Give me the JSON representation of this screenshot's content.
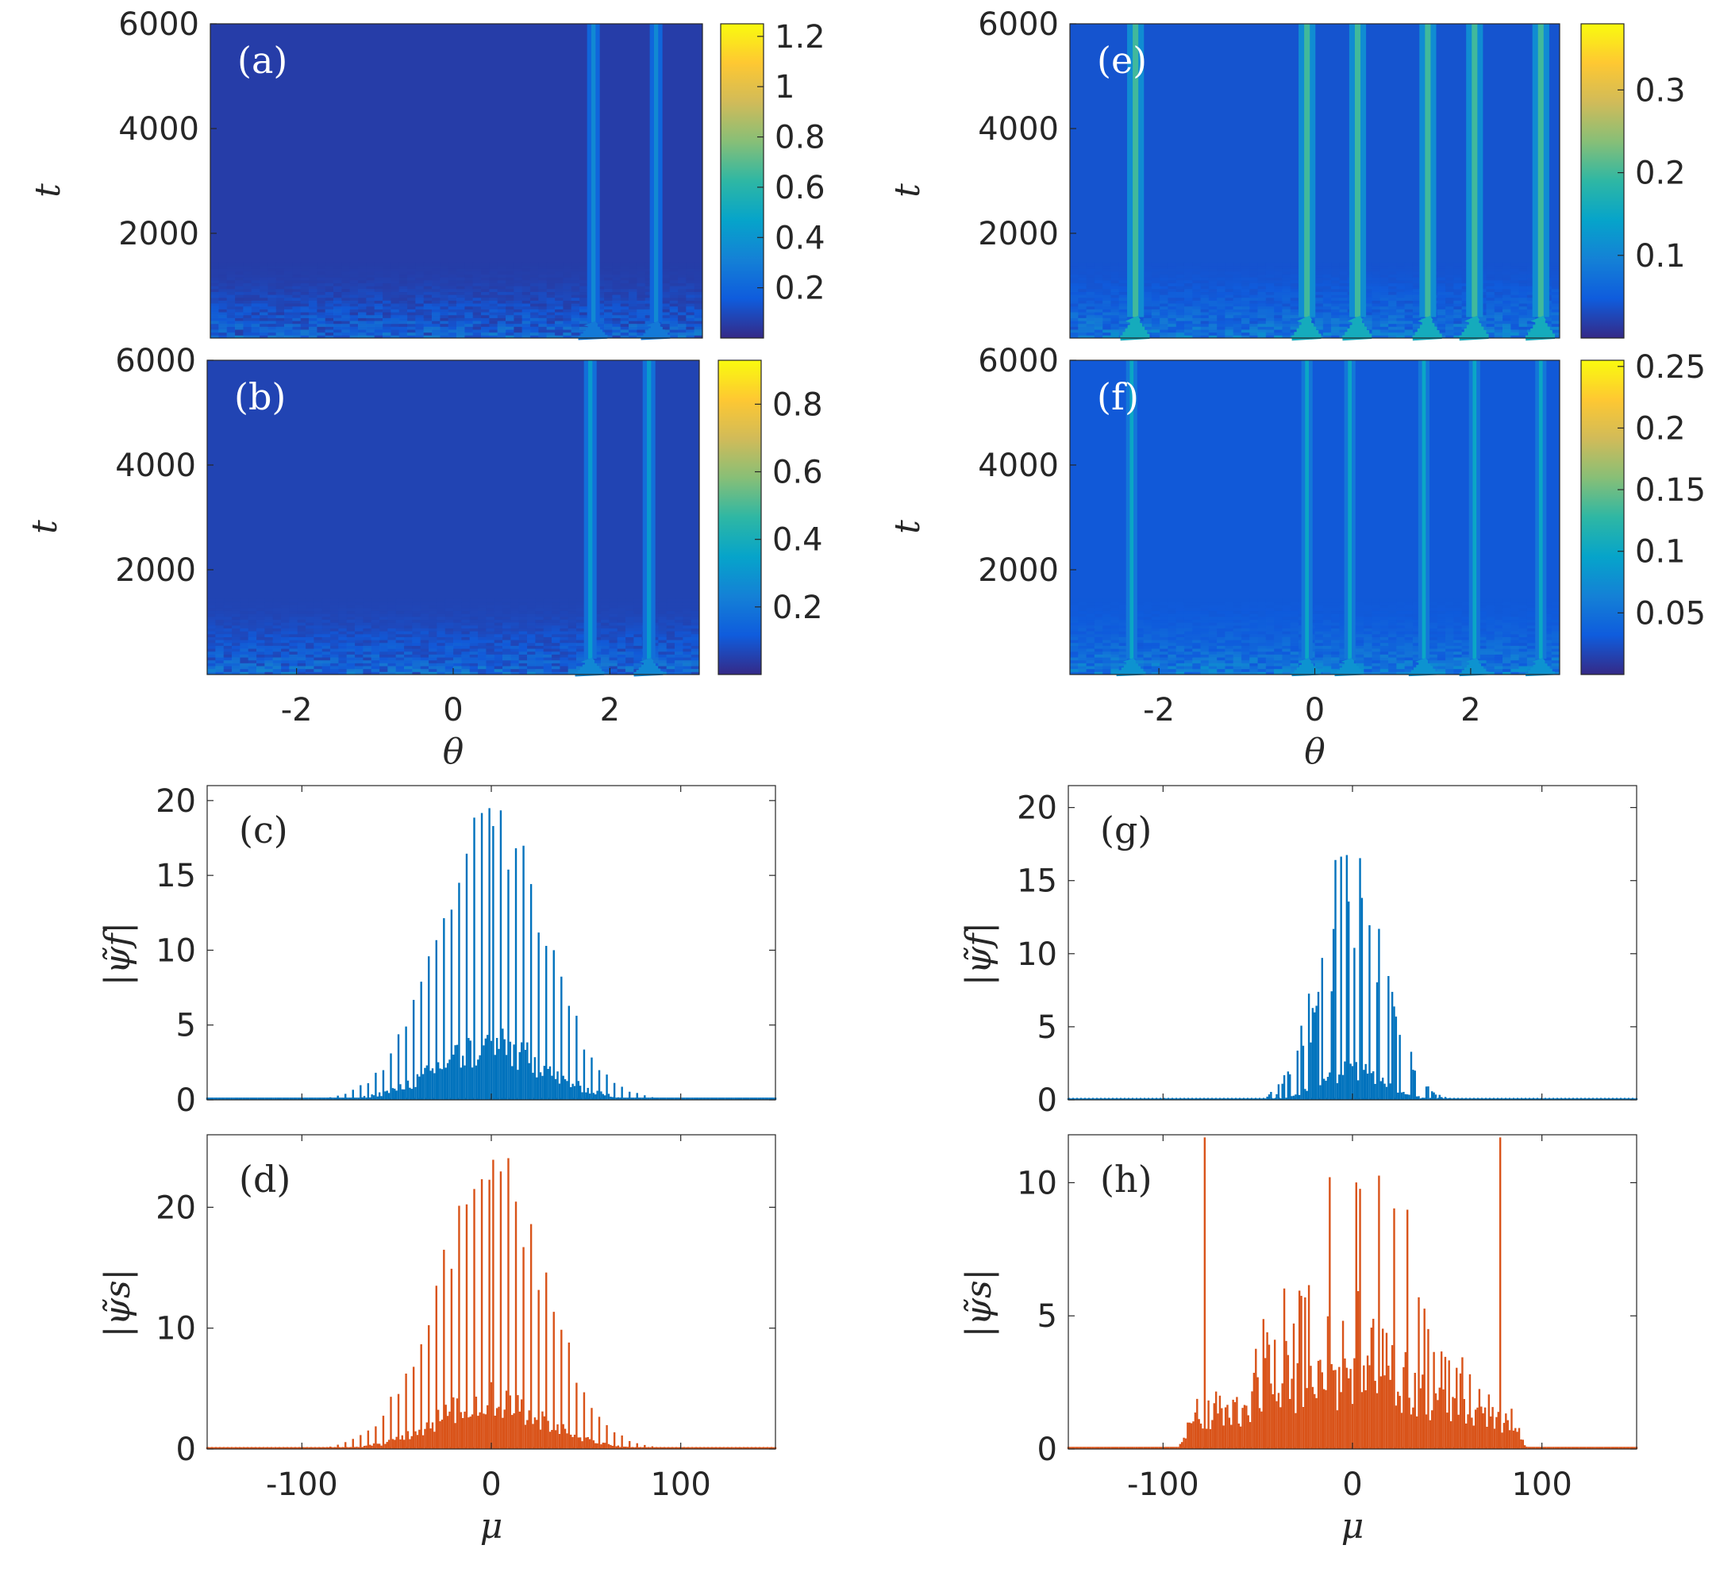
{
  "chart_data": [
    {
      "type": "heatmap",
      "panel": "(a)",
      "xlabel": "",
      "ylabel": "t",
      "xlim": [
        -3.14159,
        3.14159
      ],
      "ylim": [
        0,
        6000
      ],
      "yticks": [
        2000,
        4000,
        6000
      ],
      "xticks": [],
      "colorbar": {
        "min": 0,
        "max": 1.25,
        "ticks": [
          0.2,
          0.4,
          0.6,
          0.8,
          1,
          1.2
        ]
      },
      "stripes": [
        {
          "theta": 1.75,
          "from_t": 300,
          "width": 0.045,
          "strength": 0.35
        },
        {
          "theta": 2.55,
          "from_t": 300,
          "width": 0.045,
          "strength": 0.35
        }
      ],
      "background_level": 0.06
    },
    {
      "type": "heatmap",
      "panel": "(b)",
      "xlabel": "θ",
      "ylabel": "t",
      "xlim": [
        -3.14159,
        3.14159
      ],
      "ylim": [
        0,
        6000
      ],
      "yticks": [
        2000,
        4000,
        6000
      ],
      "xticks": [
        -2,
        0,
        2
      ],
      "colorbar": {
        "min": 0,
        "max": 0.93,
        "ticks": [
          0.2,
          0.4,
          0.6,
          0.8
        ]
      },
      "stripes": [
        {
          "theta": 1.75,
          "from_t": 300,
          "width": 0.045,
          "strength": 0.32
        },
        {
          "theta": 2.5,
          "from_t": 300,
          "width": 0.045,
          "strength": 0.32
        }
      ],
      "background_level": 0.06
    },
    {
      "type": "heatmap",
      "panel": "(e)",
      "xlabel": "",
      "ylabel": "t",
      "xlim": [
        -3.14159,
        3.14159
      ],
      "ylim": [
        0,
        6000
      ],
      "yticks": [
        2000,
        4000,
        6000
      ],
      "xticks": [],
      "colorbar": {
        "min": 0,
        "max": 0.38,
        "ticks": [
          0.1,
          0.2,
          0.3
        ]
      },
      "stripes": [
        {
          "theta": -2.3,
          "from_t": 400,
          "width": 0.06,
          "strength": 0.2
        },
        {
          "theta": -0.1,
          "from_t": 400,
          "width": 0.06,
          "strength": 0.2
        },
        {
          "theta": 0.55,
          "from_t": 400,
          "width": 0.06,
          "strength": 0.2
        },
        {
          "theta": 1.45,
          "from_t": 400,
          "width": 0.06,
          "strength": 0.2
        },
        {
          "theta": 2.05,
          "from_t": 400,
          "width": 0.06,
          "strength": 0.2
        },
        {
          "theta": 2.9,
          "from_t": 400,
          "width": 0.06,
          "strength": 0.2
        }
      ],
      "background_level": 0.04
    },
    {
      "type": "heatmap",
      "panel": "(f)",
      "xlabel": "θ",
      "ylabel": "t",
      "xlim": [
        -3.14159,
        3.14159
      ],
      "ylim": [
        0,
        6000
      ],
      "yticks": [
        2000,
        4000,
        6000
      ],
      "xticks": [
        -2,
        0,
        2
      ],
      "colorbar": {
        "min": 0,
        "max": 0.255,
        "ticks": [
          0.05,
          0.1,
          0.15,
          0.2,
          0.25
        ]
      },
      "stripes": [
        {
          "theta": -2.35,
          "from_t": 300,
          "width": 0.04,
          "strength": 0.1
        },
        {
          "theta": -0.1,
          "from_t": 300,
          "width": 0.04,
          "strength": 0.1
        },
        {
          "theta": 0.45,
          "from_t": 300,
          "width": 0.04,
          "strength": 0.1
        },
        {
          "theta": 1.4,
          "from_t": 300,
          "width": 0.04,
          "strength": 0.1
        },
        {
          "theta": 2.05,
          "from_t": 300,
          "width": 0.04,
          "strength": 0.1
        },
        {
          "theta": 2.9,
          "from_t": 300,
          "width": 0.04,
          "strength": 0.1
        }
      ],
      "background_level": 0.03
    },
    {
      "type": "bar",
      "panel": "(c)",
      "xlabel": "",
      "ylabel": "|ψ̃f|",
      "xlim": [
        -150,
        150
      ],
      "ylim": [
        0,
        21
      ],
      "yticks": [
        0,
        5,
        10,
        15,
        20
      ],
      "xticks": [],
      "series": [
        {
          "color": "#0072bd",
          "envelope": {
            "peak": 20.5,
            "width": 28,
            "base": 3.5,
            "mode": "comb-center"
          }
        }
      ]
    },
    {
      "type": "bar",
      "panel": "(d)",
      "xlabel": "μ",
      "ylabel": "|ψ̃s|",
      "xlim": [
        -150,
        150
      ],
      "ylim": [
        0,
        26
      ],
      "yticks": [
        0,
        10,
        20
      ],
      "xticks": [
        -100,
        0,
        100
      ],
      "series": [
        {
          "color": "#d95319",
          "envelope": {
            "peak": 26,
            "width": 28,
            "base": 4,
            "mode": "comb-center"
          }
        }
      ]
    },
    {
      "type": "bar",
      "panel": "(g)",
      "xlabel": "",
      "ylabel": "|ψ̃f|",
      "xlim": [
        -150,
        150
      ],
      "ylim": [
        0,
        21.5
      ],
      "yticks": [
        0,
        5,
        10,
        15,
        20
      ],
      "xticks": [],
      "series": [
        {
          "color": "#0072bd",
          "envelope": {
            "peak": 21.5,
            "width": 16,
            "base": 2,
            "mode": "narrow"
          }
        }
      ]
    },
    {
      "type": "bar",
      "panel": "(h)",
      "xlabel": "μ",
      "ylabel": "|ψ̃s|",
      "xlim": [
        -150,
        150
      ],
      "ylim": [
        0,
        11.8
      ],
      "yticks": [
        0,
        5,
        10
      ],
      "xticks": [
        -100,
        0,
        100
      ],
      "series": [
        {
          "color": "#d95319",
          "envelope": {
            "peak": 6.6,
            "width": 30,
            "base": 1.6,
            "mode": "wide-spikes",
            "spikes": [
              -78,
              78
            ],
            "spike_height": 11.7
          }
        }
      ]
    }
  ]
}
